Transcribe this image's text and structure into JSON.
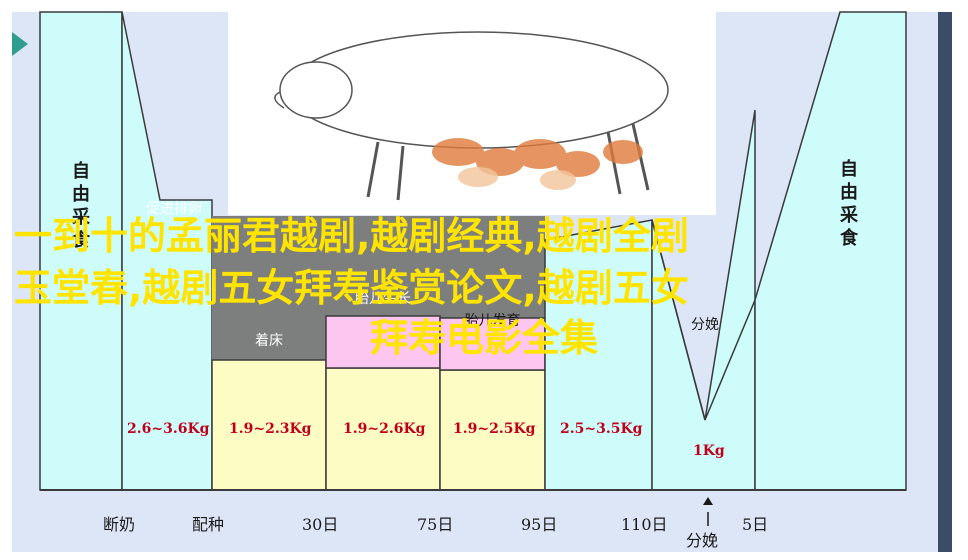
{
  "left_label": "自由采食",
  "right_label": "自由采食",
  "stages": {
    "promote_estrus": "促进排卵",
    "implantation": "着床",
    "growth": "胎儿生长",
    "development": "胎儿发育",
    "farrowing": "分娩"
  },
  "weights": [
    "2.6~3.6Kg",
    "1.9~2.3Kg",
    "1.9~2.6Kg",
    "1.9~2.5Kg",
    "2.5~3.5Kg",
    "1Kg"
  ],
  "axis": [
    "断奶",
    "配种",
    "30日",
    "75日",
    "95日",
    "110日",
    "分娩",
    "5日"
  ],
  "watermark": {
    "line1": "一到十的孟丽君越剧,越剧经典,越剧全剧",
    "line2": "玉堂春,越剧五女拜寿鉴赏论文,越剧五女",
    "line3": "拜寿电影全集"
  },
  "colors": {
    "cyan": "#cdfcfb",
    "yellow": "#fdfcc4",
    "pink": "#fcc6f0",
    "gray": "#7d7f7f",
    "weight_red": "#c0001a",
    "watermark_yellow": "#ffe400"
  }
}
